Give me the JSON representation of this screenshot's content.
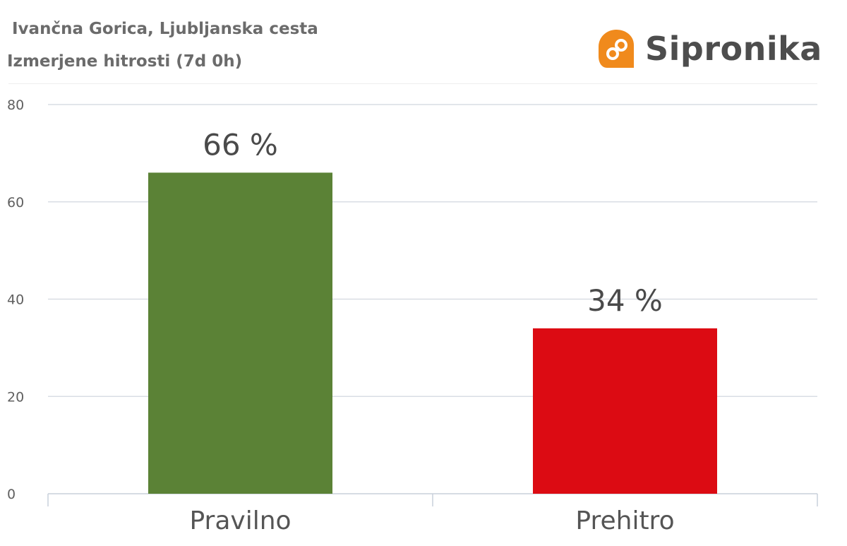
{
  "header": {
    "title": "Ivančna Gorica, Ljubljanska cesta",
    "subtitle": "Izmerjene hitrosti (7d 0h)"
  },
  "logo": {
    "text": "Sipronika",
    "icon": "sipronika-logo-icon",
    "color": "#f08a1c"
  },
  "chart_data": {
    "type": "bar",
    "title": "Ivančna Gorica, Ljubljanska cesta",
    "subtitle": "Izmerjene hitrosti (7d 0h)",
    "xlabel": "",
    "ylabel": "",
    "categories": [
      "Pravilno",
      "Prehitro"
    ],
    "values": [
      66,
      34
    ],
    "value_labels": [
      "66 %",
      "34 %"
    ],
    "colors": [
      "#5b8236",
      "#dc0b13"
    ],
    "ylim": [
      0,
      80
    ],
    "yticks": [
      0,
      20,
      40,
      60,
      80
    ],
    "grid": true,
    "legend": "none"
  }
}
